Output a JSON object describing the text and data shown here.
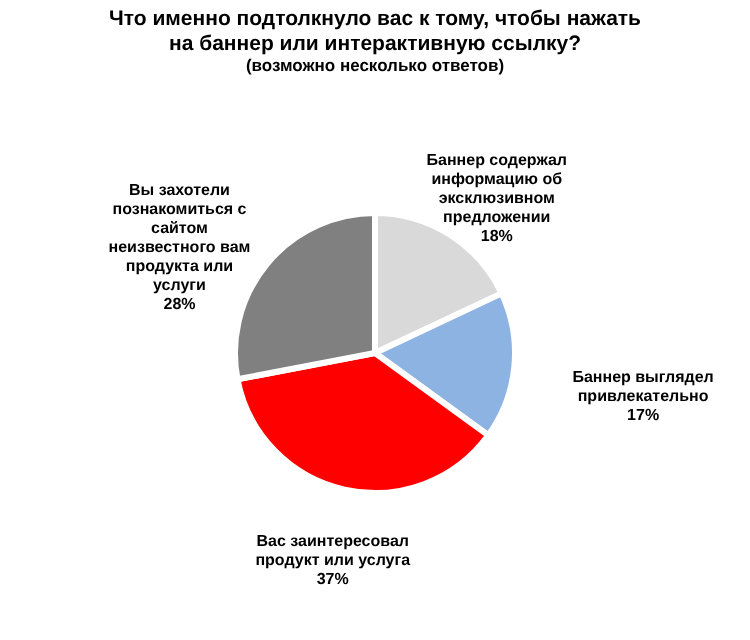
{
  "chart_data": {
    "type": "pie",
    "title": "Что именно подтолкнуло вас к тому, чтобы нажать на баннер или интерактивную ссылку?",
    "subtitle": "(возможно несколько ответов)",
    "categories": [
      "Баннер содержал информацию об эксклюзивном предложении",
      "Баннер выглядел привлекательно",
      "Вас заинтересовал продукт или услуга",
      "Вы захотели познакомиться с сайтом неизвестного вам продукта или услуги"
    ],
    "values": [
      18,
      17,
      37,
      28
    ],
    "colors": [
      "#d9d9d9",
      "#8db3e2",
      "#ff0000",
      "#808080"
    ],
    "value_labels": [
      "18%",
      "17%",
      "37%",
      "28%"
    ]
  }
}
